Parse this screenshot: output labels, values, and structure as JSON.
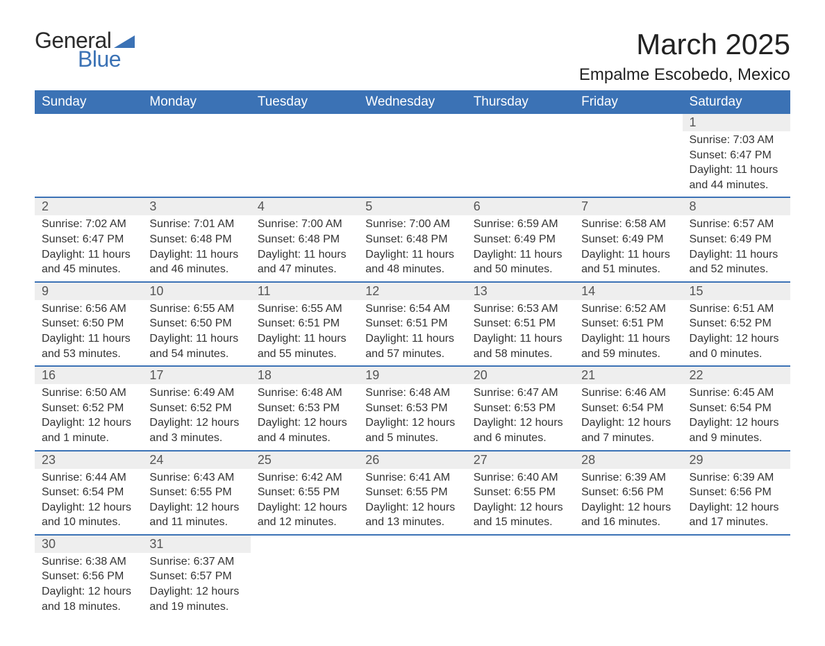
{
  "logo": {
    "text1": "General",
    "text2": "Blue",
    "triangle_color": "#3b72b5"
  },
  "title": "March 2025",
  "location": "Empalme Escobedo, Mexico",
  "colors": {
    "header_bg": "#3b72b5",
    "header_text": "#ffffff",
    "daynum_bg": "#eeeeee",
    "row_border": "#3b72b5",
    "body_text": "#333333"
  },
  "day_headers": [
    "Sunday",
    "Monday",
    "Tuesday",
    "Wednesday",
    "Thursday",
    "Friday",
    "Saturday"
  ],
  "weeks": [
    [
      null,
      null,
      null,
      null,
      null,
      null,
      {
        "n": "1",
        "sr": "Sunrise: 7:03 AM",
        "ss": "Sunset: 6:47 PM",
        "dl": "Daylight: 11 hours and 44 minutes."
      }
    ],
    [
      {
        "n": "2",
        "sr": "Sunrise: 7:02 AM",
        "ss": "Sunset: 6:47 PM",
        "dl": "Daylight: 11 hours and 45 minutes."
      },
      {
        "n": "3",
        "sr": "Sunrise: 7:01 AM",
        "ss": "Sunset: 6:48 PM",
        "dl": "Daylight: 11 hours and 46 minutes."
      },
      {
        "n": "4",
        "sr": "Sunrise: 7:00 AM",
        "ss": "Sunset: 6:48 PM",
        "dl": "Daylight: 11 hours and 47 minutes."
      },
      {
        "n": "5",
        "sr": "Sunrise: 7:00 AM",
        "ss": "Sunset: 6:48 PM",
        "dl": "Daylight: 11 hours and 48 minutes."
      },
      {
        "n": "6",
        "sr": "Sunrise: 6:59 AM",
        "ss": "Sunset: 6:49 PM",
        "dl": "Daylight: 11 hours and 50 minutes."
      },
      {
        "n": "7",
        "sr": "Sunrise: 6:58 AM",
        "ss": "Sunset: 6:49 PM",
        "dl": "Daylight: 11 hours and 51 minutes."
      },
      {
        "n": "8",
        "sr": "Sunrise: 6:57 AM",
        "ss": "Sunset: 6:49 PM",
        "dl": "Daylight: 11 hours and 52 minutes."
      }
    ],
    [
      {
        "n": "9",
        "sr": "Sunrise: 6:56 AM",
        "ss": "Sunset: 6:50 PM",
        "dl": "Daylight: 11 hours and 53 minutes."
      },
      {
        "n": "10",
        "sr": "Sunrise: 6:55 AM",
        "ss": "Sunset: 6:50 PM",
        "dl": "Daylight: 11 hours and 54 minutes."
      },
      {
        "n": "11",
        "sr": "Sunrise: 6:55 AM",
        "ss": "Sunset: 6:51 PM",
        "dl": "Daylight: 11 hours and 55 minutes."
      },
      {
        "n": "12",
        "sr": "Sunrise: 6:54 AM",
        "ss": "Sunset: 6:51 PM",
        "dl": "Daylight: 11 hours and 57 minutes."
      },
      {
        "n": "13",
        "sr": "Sunrise: 6:53 AM",
        "ss": "Sunset: 6:51 PM",
        "dl": "Daylight: 11 hours and 58 minutes."
      },
      {
        "n": "14",
        "sr": "Sunrise: 6:52 AM",
        "ss": "Sunset: 6:51 PM",
        "dl": "Daylight: 11 hours and 59 minutes."
      },
      {
        "n": "15",
        "sr": "Sunrise: 6:51 AM",
        "ss": "Sunset: 6:52 PM",
        "dl": "Daylight: 12 hours and 0 minutes."
      }
    ],
    [
      {
        "n": "16",
        "sr": "Sunrise: 6:50 AM",
        "ss": "Sunset: 6:52 PM",
        "dl": "Daylight: 12 hours and 1 minute."
      },
      {
        "n": "17",
        "sr": "Sunrise: 6:49 AM",
        "ss": "Sunset: 6:52 PM",
        "dl": "Daylight: 12 hours and 3 minutes."
      },
      {
        "n": "18",
        "sr": "Sunrise: 6:48 AM",
        "ss": "Sunset: 6:53 PM",
        "dl": "Daylight: 12 hours and 4 minutes."
      },
      {
        "n": "19",
        "sr": "Sunrise: 6:48 AM",
        "ss": "Sunset: 6:53 PM",
        "dl": "Daylight: 12 hours and 5 minutes."
      },
      {
        "n": "20",
        "sr": "Sunrise: 6:47 AM",
        "ss": "Sunset: 6:53 PM",
        "dl": "Daylight: 12 hours and 6 minutes."
      },
      {
        "n": "21",
        "sr": "Sunrise: 6:46 AM",
        "ss": "Sunset: 6:54 PM",
        "dl": "Daylight: 12 hours and 7 minutes."
      },
      {
        "n": "22",
        "sr": "Sunrise: 6:45 AM",
        "ss": "Sunset: 6:54 PM",
        "dl": "Daylight: 12 hours and 9 minutes."
      }
    ],
    [
      {
        "n": "23",
        "sr": "Sunrise: 6:44 AM",
        "ss": "Sunset: 6:54 PM",
        "dl": "Daylight: 12 hours and 10 minutes."
      },
      {
        "n": "24",
        "sr": "Sunrise: 6:43 AM",
        "ss": "Sunset: 6:55 PM",
        "dl": "Daylight: 12 hours and 11 minutes."
      },
      {
        "n": "25",
        "sr": "Sunrise: 6:42 AM",
        "ss": "Sunset: 6:55 PM",
        "dl": "Daylight: 12 hours and 12 minutes."
      },
      {
        "n": "26",
        "sr": "Sunrise: 6:41 AM",
        "ss": "Sunset: 6:55 PM",
        "dl": "Daylight: 12 hours and 13 minutes."
      },
      {
        "n": "27",
        "sr": "Sunrise: 6:40 AM",
        "ss": "Sunset: 6:55 PM",
        "dl": "Daylight: 12 hours and 15 minutes."
      },
      {
        "n": "28",
        "sr": "Sunrise: 6:39 AM",
        "ss": "Sunset: 6:56 PM",
        "dl": "Daylight: 12 hours and 16 minutes."
      },
      {
        "n": "29",
        "sr": "Sunrise: 6:39 AM",
        "ss": "Sunset: 6:56 PM",
        "dl": "Daylight: 12 hours and 17 minutes."
      }
    ],
    [
      {
        "n": "30",
        "sr": "Sunrise: 6:38 AM",
        "ss": "Sunset: 6:56 PM",
        "dl": "Daylight: 12 hours and 18 minutes."
      },
      {
        "n": "31",
        "sr": "Sunrise: 6:37 AM",
        "ss": "Sunset: 6:57 PM",
        "dl": "Daylight: 12 hours and 19 minutes."
      },
      null,
      null,
      null,
      null,
      null
    ]
  ]
}
